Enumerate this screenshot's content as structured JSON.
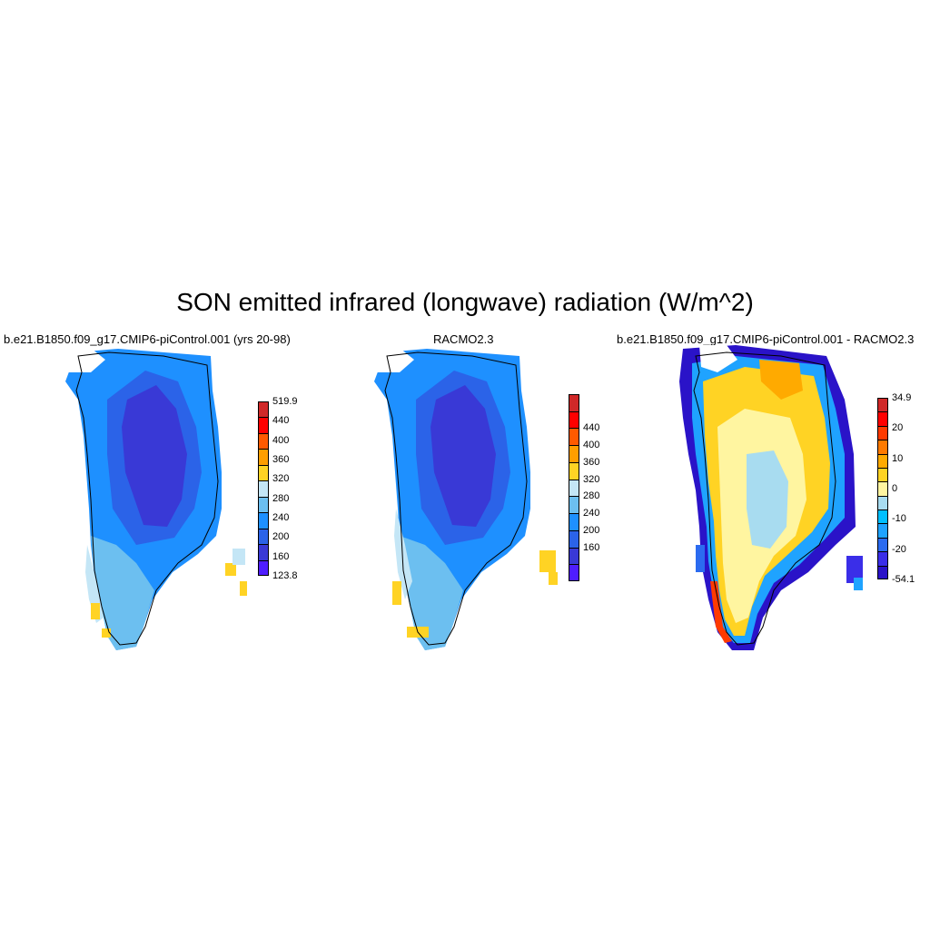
{
  "title": "SON emitted infrared (longwave) radiation (W/m^2)",
  "panels": [
    {
      "title": "b.e21.B1850.f09_g17.CMIP6-piControl.001 (yrs 20-98)",
      "colorbar": {
        "colors": [
          "#4f1dff",
          "#3939d6",
          "#2b63e8",
          "#1e90ff",
          "#6cbff0",
          "#c4e6f6",
          "#ffd324",
          "#ff9e00",
          "#ff5a00",
          "#ff0000",
          "#d02828"
        ],
        "labels": [
          "519.9",
          "440",
          "400",
          "360",
          "320",
          "280",
          "240",
          "200",
          "160",
          "123.8"
        ]
      }
    },
    {
      "title": "RACMO2.3",
      "colorbar": {
        "colors": [
          "#4f1dff",
          "#3939d6",
          "#2b63e8",
          "#1e90ff",
          "#6cbff0",
          "#c4e6f6",
          "#ffd324",
          "#ff9e00",
          "#ff5a00",
          "#ff0000",
          "#d02828"
        ],
        "labels": [
          "440",
          "400",
          "360",
          "320",
          "280",
          "240",
          "200",
          "160"
        ]
      }
    },
    {
      "title": "b.e21.B1850.f09_g17.CMIP6-piControl.001 - RACMO2.3",
      "colorbar": {
        "colors": [
          "#2a13c8",
          "#3a2ee8",
          "#2b6bf0",
          "#1fa3ff",
          "#00bfff",
          "#a8dcf0",
          "#fff5a0",
          "#ffd324",
          "#ffaa00",
          "#ff7a00",
          "#ff3a00",
          "#ff0000",
          "#d02828"
        ],
        "labels": [
          "34.9",
          "20",
          "10",
          "0",
          "-10",
          "-20",
          "-54.1"
        ]
      }
    }
  ]
}
